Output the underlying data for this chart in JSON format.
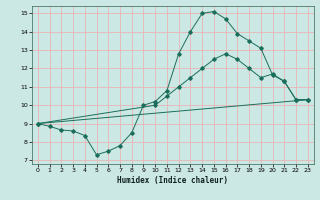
{
  "xlabel": "Humidex (Indice chaleur)",
  "xlim": [
    0,
    23
  ],
  "ylim": [
    7,
    15
  ],
  "yticks": [
    7,
    8,
    9,
    10,
    11,
    12,
    13,
    14,
    15
  ],
  "xticks": [
    0,
    1,
    2,
    3,
    4,
    5,
    6,
    7,
    8,
    9,
    10,
    11,
    12,
    13,
    14,
    15,
    16,
    17,
    18,
    19,
    20,
    21,
    22,
    23
  ],
  "bg_color": "#cce8e4",
  "grid_color": "#e8b4b4",
  "line_color": "#1a6e5a",
  "line1_x": [
    0,
    1,
    2,
    3,
    4,
    5,
    6,
    7,
    8,
    9,
    10,
    11,
    12,
    13,
    14,
    15,
    16,
    17,
    18,
    19,
    20,
    21,
    22,
    23
  ],
  "line1_y": [
    9.0,
    8.85,
    8.65,
    8.6,
    8.35,
    7.3,
    7.5,
    7.8,
    8.5,
    10.0,
    10.2,
    10.8,
    12.8,
    14.0,
    15.0,
    15.1,
    14.7,
    13.9,
    13.5,
    13.1,
    11.65,
    11.3,
    10.3,
    10.3
  ],
  "line2_x": [
    0,
    10,
    11,
    12,
    13,
    14,
    15,
    16,
    17,
    18,
    19,
    20,
    21,
    22,
    23
  ],
  "line2_y": [
    9.0,
    10.0,
    10.5,
    11.0,
    11.5,
    12.0,
    12.5,
    12.8,
    12.5,
    12.0,
    11.5,
    11.7,
    11.3,
    10.3,
    10.3
  ],
  "line3_x": [
    0,
    23
  ],
  "line3_y": [
    9.0,
    10.3
  ]
}
